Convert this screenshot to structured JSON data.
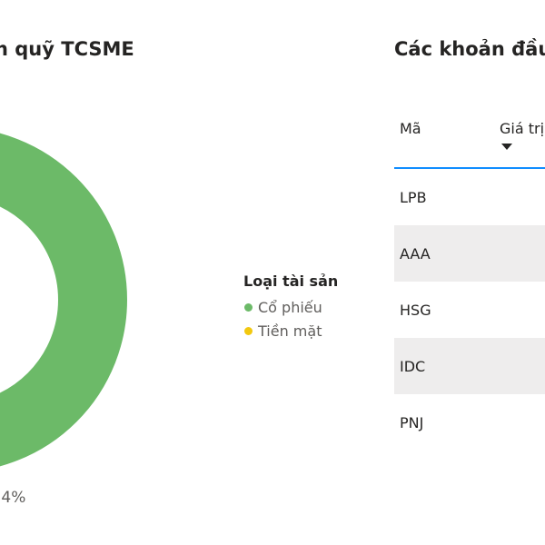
{
  "left_panel": {
    "title": "n quỹ TCSME",
    "legend_title": "Loại tài sản",
    "legend_items": [
      {
        "label": "Cổ phiếu",
        "color": "#6cba68"
      },
      {
        "label": "Tiền mặt",
        "color": "#f2c80f"
      }
    ],
    "percent_label": ",4%"
  },
  "right_panel": {
    "title": "Các khoản đầu",
    "columns": {
      "code": "Mã",
      "value": "Giá trị"
    },
    "rows": [
      {
        "code": "LPB"
      },
      {
        "code": "AAA"
      },
      {
        "code": "HSG"
      },
      {
        "code": "IDC"
      },
      {
        "code": "PNJ"
      }
    ]
  },
  "colors": {
    "stock": "#6cba68",
    "cash": "#f2c80f",
    "header_rule": "#118dff",
    "row_alt": "#eeeded"
  }
}
